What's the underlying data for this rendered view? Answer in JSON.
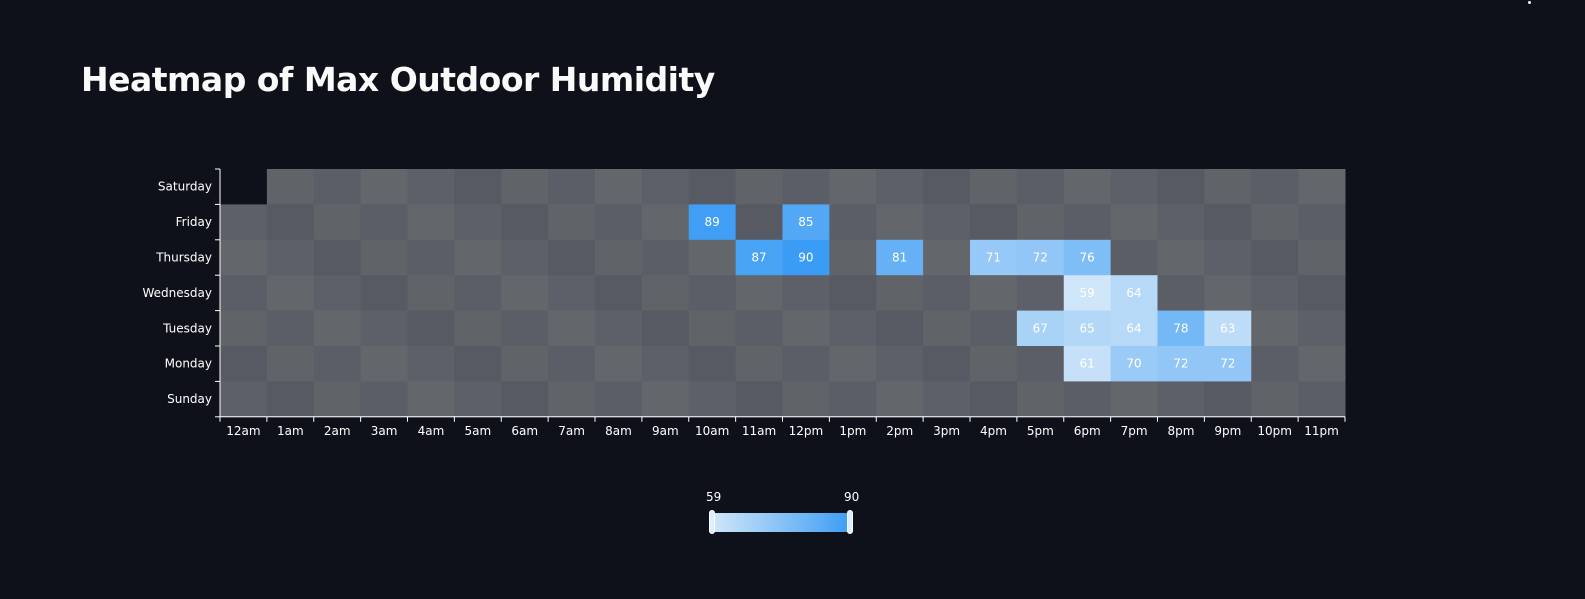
{
  "page": {
    "title": "Heatmap of Max Outdoor Humidity"
  },
  "chart_data": {
    "type": "heatmap",
    "title": "Heatmap of Max Outdoor Humidity",
    "x_categories": [
      "12am",
      "1am",
      "2am",
      "3am",
      "4am",
      "5am",
      "6am",
      "7am",
      "8am",
      "9am",
      "10am",
      "11am",
      "12pm",
      "1pm",
      "2pm",
      "3pm",
      "4pm",
      "5pm",
      "6pm",
      "7pm",
      "8pm",
      "9pm",
      "10pm",
      "11pm"
    ],
    "y_categories": [
      "Saturday",
      "Friday",
      "Thursday",
      "Wednesday",
      "Tuesday",
      "Monday",
      "Sunday"
    ],
    "values": [
      {
        "day": "Friday",
        "hour": "10am",
        "value": 89
      },
      {
        "day": "Friday",
        "hour": "12pm",
        "value": 85
      },
      {
        "day": "Thursday",
        "hour": "11am",
        "value": 87
      },
      {
        "day": "Thursday",
        "hour": "12pm",
        "value": 90
      },
      {
        "day": "Thursday",
        "hour": "2pm",
        "value": 81
      },
      {
        "day": "Thursday",
        "hour": "4pm",
        "value": 71
      },
      {
        "day": "Thursday",
        "hour": "5pm",
        "value": 72
      },
      {
        "day": "Thursday",
        "hour": "6pm",
        "value": 76
      },
      {
        "day": "Wednesday",
        "hour": "6pm",
        "value": 59
      },
      {
        "day": "Wednesday",
        "hour": "7pm",
        "value": 64
      },
      {
        "day": "Tuesday",
        "hour": "5pm",
        "value": 67
      },
      {
        "day": "Tuesday",
        "hour": "6pm",
        "value": 65
      },
      {
        "day": "Tuesday",
        "hour": "7pm",
        "value": 64
      },
      {
        "day": "Tuesday",
        "hour": "8pm",
        "value": 78
      },
      {
        "day": "Tuesday",
        "hour": "9pm",
        "value": 63
      },
      {
        "day": "Monday",
        "hour": "6pm",
        "value": 61
      },
      {
        "day": "Monday",
        "hour": "7pm",
        "value": 70
      },
      {
        "day": "Monday",
        "hour": "8pm",
        "value": 72
      },
      {
        "day": "Monday",
        "hour": "9pm",
        "value": 72
      }
    ],
    "empty_cells": [
      {
        "day": "Saturday",
        "hour": "12am"
      }
    ],
    "visual_map": {
      "min": 59,
      "max": 90,
      "min_label": "59",
      "max_label": "90",
      "color_low": "#cfe5f8",
      "color_high": "#3b9cf5"
    },
    "colors": {
      "background": "#0e111a",
      "no_data_cell": "#5d6068",
      "axis": "#ffffff",
      "text": "#ffffff"
    }
  }
}
